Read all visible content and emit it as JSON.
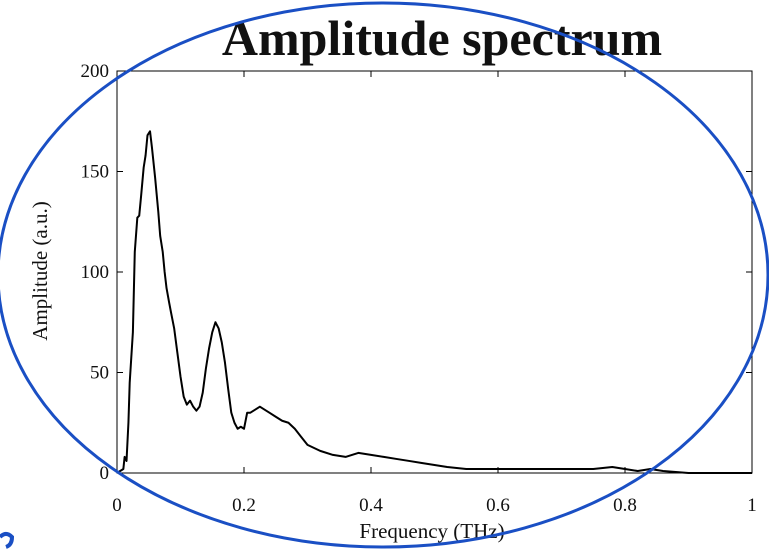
{
  "chart_data": {
    "type": "line",
    "title": "Amplitude spectrum",
    "xlabel": "Frequency (THz)",
    "ylabel": "Amplitude (a.u.)",
    "xlim": [
      0,
      1
    ],
    "ylim": [
      0,
      200
    ],
    "x_ticks": [
      0,
      0.2,
      0.4,
      0.6,
      0.8,
      1
    ],
    "x_tick_labels": [
      "0",
      "0.2",
      "0.4",
      "0.6",
      "0.8",
      "1"
    ],
    "y_ticks": [
      0,
      50,
      100,
      150,
      200
    ],
    "y_tick_labels": [
      "0",
      "50",
      "100",
      "150",
      "200"
    ],
    "grid": false,
    "series": [
      {
        "color": "#000000",
        "x": [
          0,
          0.005,
          0.01,
          0.012,
          0.015,
          0.018,
          0.02,
          0.025,
          0.028,
          0.032,
          0.035,
          0.038,
          0.042,
          0.045,
          0.048,
          0.052,
          0.055,
          0.06,
          0.065,
          0.068,
          0.072,
          0.075,
          0.078,
          0.082,
          0.085,
          0.09,
          0.095,
          0.1,
          0.105,
          0.11,
          0.115,
          0.12,
          0.125,
          0.13,
          0.135,
          0.14,
          0.145,
          0.15,
          0.155,
          0.16,
          0.165,
          0.17,
          0.175,
          0.18,
          0.185,
          0.19,
          0.195,
          0.2,
          0.205,
          0.21,
          0.215,
          0.22,
          0.225,
          0.23,
          0.24,
          0.25,
          0.26,
          0.27,
          0.28,
          0.29,
          0.3,
          0.32,
          0.34,
          0.36,
          0.38,
          0.4,
          0.42,
          0.44,
          0.46,
          0.48,
          0.5,
          0.52,
          0.55,
          0.58,
          0.6,
          0.65,
          0.7,
          0.75,
          0.78,
          0.8,
          0.82,
          0.84,
          0.86,
          0.9,
          0.95,
          1.0
        ],
        "y": [
          0,
          1,
          2,
          8,
          6,
          25,
          45,
          70,
          110,
          127,
          128,
          138,
          152,
          158,
          168,
          170,
          162,
          147,
          130,
          118,
          110,
          100,
          92,
          85,
          80,
          72,
          60,
          48,
          38,
          34,
          36,
          33,
          31,
          33,
          40,
          52,
          62,
          70,
          75,
          72,
          65,
          55,
          42,
          30,
          25,
          22,
          23,
          22,
          30,
          30,
          31,
          32,
          33,
          32,
          30,
          28,
          26,
          25,
          22,
          18,
          14,
          11,
          9,
          8,
          10,
          9,
          8,
          7,
          6,
          5,
          4,
          3,
          2,
          2,
          2,
          2,
          2,
          2,
          3,
          2,
          1,
          2,
          1,
          0,
          0,
          0
        ]
      }
    ]
  }
}
